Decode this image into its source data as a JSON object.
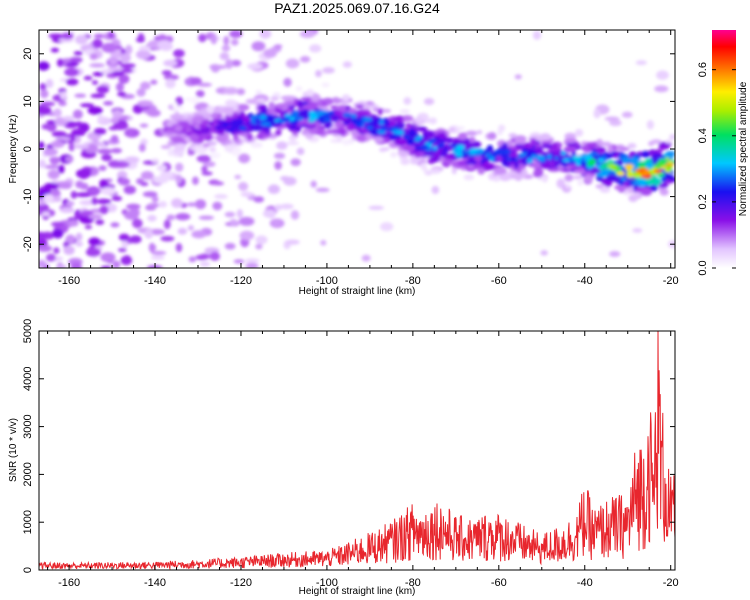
{
  "title": "PAZ1.2025.069.07.16.G24",
  "chart_data": [
    {
      "type": "heatmap",
      "xlabel": "Height of straight line (km)",
      "ylabel": "Frequency (Hz)",
      "xlim": [
        -167,
        -19
      ],
      "ylim": [
        -25,
        25
      ],
      "xticks": [
        -160,
        -140,
        -120,
        -100,
        -80,
        -60,
        -40,
        -20
      ],
      "yticks": [
        -20,
        -10,
        0,
        10,
        20
      ],
      "colorbar": {
        "label": "Normalized spectral amplitude",
        "range": [
          0,
          0.72
        ],
        "ticks": [
          0.0,
          0.2,
          0.4,
          0.6
        ],
        "colormap": "rainbow (white-purple-blue-cyan-green-yellow-red-magenta)"
      },
      "ridge": {
        "description": "main spectral ridge frequency vs height",
        "x": [
          -135,
          -125,
          -115,
          -105,
          -95,
          -85,
          -75,
          -65,
          -55,
          -45,
          -40,
          -35,
          -30,
          -25,
          -20
        ],
        "y": [
          3.5,
          4.5,
          6.0,
          7.0,
          6.5,
          4.0,
          0.5,
          -1.0,
          -1.5,
          -1.5,
          -2.5,
          -3.5,
          -4.5,
          -5.0,
          -3.0
        ],
        "peak_amplitude": [
          0.15,
          0.2,
          0.3,
          0.32,
          0.28,
          0.3,
          0.32,
          0.3,
          0.3,
          0.3,
          0.35,
          0.45,
          0.55,
          0.7,
          0.6
        ]
      },
      "colors": {
        "low": "#ead0ff",
        "mid": "#7a00e6",
        "high": "#ff0000"
      }
    },
    {
      "type": "line",
      "xlabel": "Height of straight line (km)",
      "ylabel": "SNR (10 * v/v)",
      "xlim": [
        -167,
        -19
      ],
      "ylim": [
        0,
        5000
      ],
      "xticks": [
        -160,
        -140,
        -120,
        -100,
        -80,
        -60,
        -40,
        -20
      ],
      "yticks": [
        0,
        1000,
        2000,
        3000,
        4000,
        5000
      ],
      "series": [
        {
          "color": "#e8262d",
          "x": [
            -167,
            -160,
            -150,
            -140,
            -130,
            -120,
            -110,
            -100,
            -96,
            -92,
            -88,
            -84,
            -80,
            -78,
            -74,
            -70,
            -66,
            -62,
            -58,
            -54,
            -50,
            -46,
            -42,
            -40,
            -38,
            -34,
            -30,
            -28,
            -26,
            -25,
            -24,
            -23,
            -22,
            -21,
            -20
          ],
          "values": [
            150,
            140,
            150,
            160,
            200,
            250,
            330,
            380,
            500,
            650,
            800,
            1000,
            1300,
            1200,
            1400,
            1050,
            1000,
            1150,
            1050,
            850,
            700,
            850,
            1100,
            1700,
            1200,
            1400,
            1500,
            2500,
            2700,
            3500,
            2400,
            5000,
            3200,
            2600,
            1800
          ]
        }
      ]
    }
  ]
}
